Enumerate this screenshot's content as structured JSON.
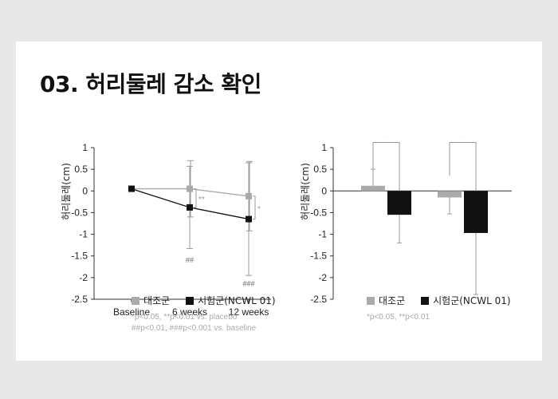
{
  "title": "03. 허리둘레 감소 확인",
  "chart_data": [
    {
      "type": "line",
      "ylabel": "허리둘레(cm)",
      "categories": [
        "Baseline",
        "6 weeks",
        "12 weeks"
      ],
      "yticks": [
        "1",
        "0.5",
        "0",
        "-0.5",
        "-1",
        "-1.5",
        "-2",
        "-2.5"
      ],
      "ylim": [
        -2.5,
        1
      ],
      "series": [
        {
          "name": "대조군",
          "color": "#aaaaaa",
          "values": [
            0.05,
            0.05,
            -0.12
          ],
          "err": [
            0,
            0.65,
            0.8
          ]
        },
        {
          "name": "시험군(NCWL 01)",
          "color": "#111111",
          "values": [
            0.05,
            -0.38,
            -0.65
          ],
          "err": [
            0,
            0.95,
            1.3
          ]
        }
      ],
      "annotations": {
        "sig6": "**",
        "sig12": "*",
        "hash6": "##",
        "hash12": "###"
      },
      "note_lines": [
        "*p<0.05, **p<0.01 vs. placebo",
        "##p<0.01, ###p<0.001 vs. baseline"
      ]
    },
    {
      "type": "bar",
      "ylabel": "허리둘레(cm)",
      "yticks": [
        "1",
        "0.5",
        "0",
        "-0.5",
        "-1",
        "-1.5",
        "-2",
        "-2.5"
      ],
      "ylim": [
        -2.5,
        1
      ],
      "groups": [
        {
          "bars": [
            {
              "name": "대조군",
              "color": "#aaaaaa",
              "value": 0.12,
              "err": 0.38
            },
            {
              "name": "시험군(NCWL 01)",
              "color": "#111111",
              "value": -0.55,
              "err": 0.65
            }
          ],
          "sig": "***"
        },
        {
          "bars": [
            {
              "name": "대조군",
              "color": "#aaaaaa",
              "value": -0.15,
              "err": 0.38
            },
            {
              "name": "시험군(NCWL 01)",
              "color": "#111111",
              "value": -0.97,
              "err": 1.42
            }
          ],
          "sig": "***"
        }
      ],
      "note_lines": [
        "*p<0.05, **p<0.01"
      ]
    }
  ],
  "legend": [
    {
      "label": "대조군",
      "color": "#aaaaaa"
    },
    {
      "label": "시험군(NCWL 01)",
      "color": "#111111"
    }
  ]
}
